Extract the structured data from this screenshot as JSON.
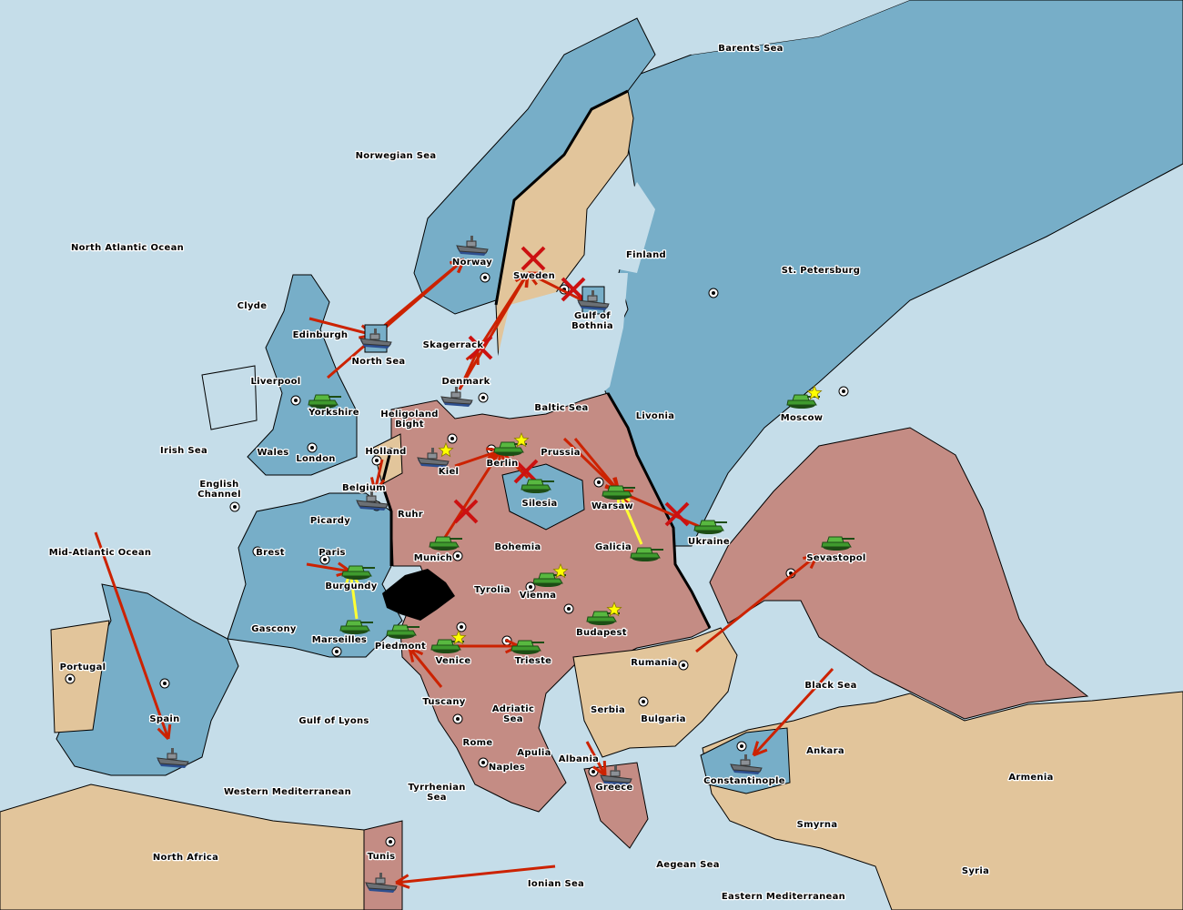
{
  "colors": {
    "sea": "#c5dde9",
    "russia_land": "#77aec8",
    "england_france_land": "#77aec8",
    "central_powers_land": "#c48c84",
    "neutral_land": "#e2c59b",
    "impassable": "#000000",
    "order_red": "#cc2200",
    "order_yellow": "#ffff33",
    "failed_mark": "#cc1111",
    "army_green": "#3f9a2e",
    "fleet_grey": "#6b7075",
    "supply_star": "#ffff00"
  },
  "labels": [
    {
      "lines": [
        "North Atlantic Ocean"
      ]
    },
    {
      "lines": [
        "Norwegian Sea"
      ]
    },
    {
      "lines": [
        "Barents Sea"
      ]
    },
    {
      "lines": [
        "Clyde"
      ]
    },
    {
      "lines": [
        "Edinburgh"
      ]
    },
    {
      "lines": [
        "Liverpool"
      ]
    },
    {
      "lines": [
        "Yorkshire"
      ]
    },
    {
      "lines": [
        "Wales"
      ]
    },
    {
      "lines": [
        "London"
      ]
    },
    {
      "lines": [
        "Irish Sea"
      ]
    },
    {
      "lines": [
        "English",
        "Channel"
      ]
    },
    {
      "lines": [
        "North Sea"
      ]
    },
    {
      "lines": [
        "Norway"
      ]
    },
    {
      "lines": [
        "Sweden"
      ]
    },
    {
      "lines": [
        "Gulf of",
        "Bothnia"
      ]
    },
    {
      "lines": [
        "Finland"
      ]
    },
    {
      "lines": [
        "St. Petersburg"
      ]
    },
    {
      "lines": [
        "Skagerrack"
      ]
    },
    {
      "lines": [
        "Denmark"
      ]
    },
    {
      "lines": [
        "Heligoland",
        "Bight"
      ]
    },
    {
      "lines": [
        "Baltic Sea"
      ]
    },
    {
      "lines": [
        "Livonia"
      ]
    },
    {
      "lines": [
        "Moscow"
      ]
    },
    {
      "lines": [
        "Holland"
      ]
    },
    {
      "lines": [
        "Kiel"
      ]
    },
    {
      "lines": [
        "Berlin"
      ]
    },
    {
      "lines": [
        "Prussia"
      ]
    },
    {
      "lines": [
        "Belgium"
      ]
    },
    {
      "lines": [
        "Ruhr"
      ]
    },
    {
      "lines": [
        "Silesia"
      ]
    },
    {
      "lines": [
        "Warsaw"
      ]
    },
    {
      "lines": [
        "Ukraine"
      ]
    },
    {
      "lines": [
        "Picardy"
      ]
    },
    {
      "lines": [
        "Brest"
      ]
    },
    {
      "lines": [
        "Paris"
      ]
    },
    {
      "lines": [
        "Munich"
      ]
    },
    {
      "lines": [
        "Bohemia"
      ]
    },
    {
      "lines": [
        "Galicia"
      ]
    },
    {
      "lines": [
        "Sevastopol"
      ]
    },
    {
      "lines": [
        "Mid-Atlantic Ocean"
      ]
    },
    {
      "lines": [
        "Burgundy"
      ]
    },
    {
      "lines": [
        "Tyrolia"
      ]
    },
    {
      "lines": [
        "Vienna"
      ]
    },
    {
      "lines": [
        "Budapest"
      ]
    },
    {
      "lines": [
        "Gascony"
      ]
    },
    {
      "lines": [
        "Marseilles"
      ]
    },
    {
      "lines": [
        "Piedmont"
      ]
    },
    {
      "lines": [
        "Venice"
      ]
    },
    {
      "lines": [
        "Trieste"
      ]
    },
    {
      "lines": [
        "Rumania"
      ]
    },
    {
      "lines": [
        "Portugal"
      ]
    },
    {
      "lines": [
        "Black Sea"
      ]
    },
    {
      "lines": [
        "Tuscany"
      ]
    },
    {
      "lines": [
        "Serbia"
      ]
    },
    {
      "lines": [
        "Bulgaria"
      ]
    },
    {
      "lines": [
        "Spain"
      ]
    },
    {
      "lines": [
        "Gulf of Lyons"
      ]
    },
    {
      "lines": [
        "Adriatic",
        "Sea"
      ]
    },
    {
      "lines": [
        "Rome"
      ]
    },
    {
      "lines": [
        "Apulia"
      ]
    },
    {
      "lines": [
        "Albania"
      ]
    },
    {
      "lines": [
        "Ankara"
      ]
    },
    {
      "lines": [
        "Naples"
      ]
    },
    {
      "lines": [
        "Armenia"
      ]
    },
    {
      "lines": [
        "Constantinople"
      ]
    },
    {
      "lines": [
        "Greece"
      ]
    },
    {
      "lines": [
        "Western Mediterranean"
      ]
    },
    {
      "lines": [
        "Tyrrhenian",
        "Sea"
      ]
    },
    {
      "lines": [
        "Smyrna"
      ]
    },
    {
      "lines": [
        "North Africa"
      ]
    },
    {
      "lines": [
        "Tunis"
      ]
    },
    {
      "lines": [
        "Aegean Sea"
      ]
    },
    {
      "lines": [
        "Syria"
      ]
    },
    {
      "lines": [
        "Ionian Sea"
      ]
    },
    {
      "lines": [
        "Eastern Mediterranean"
      ]
    }
  ],
  "units": [
    {
      "type": "fleet",
      "province": "Norway"
    },
    {
      "type": "fleet",
      "province": "North Sea",
      "selected": true
    },
    {
      "type": "fleet",
      "province": "Gulf of Bothnia",
      "selected": true
    },
    {
      "type": "fleet",
      "province": "Denmark"
    },
    {
      "type": "fleet",
      "province": "Kiel",
      "star": true
    },
    {
      "type": "fleet",
      "province": "Belgium"
    },
    {
      "type": "fleet",
      "province": "Spain"
    },
    {
      "type": "fleet",
      "province": "Constantinople"
    },
    {
      "type": "fleet",
      "province": "Greece"
    },
    {
      "type": "fleet",
      "province": "Tunis"
    },
    {
      "type": "army",
      "province": "Yorkshire"
    },
    {
      "type": "army",
      "province": "Moscow",
      "star": true
    },
    {
      "type": "army",
      "province": "Berlin",
      "star": true
    },
    {
      "type": "army",
      "province": "Silesia"
    },
    {
      "type": "army",
      "province": "Warsaw"
    },
    {
      "type": "army",
      "province": "Ukraine"
    },
    {
      "type": "army",
      "province": "Galicia"
    },
    {
      "type": "army",
      "province": "Sevastopol"
    },
    {
      "type": "army",
      "province": "Munich"
    },
    {
      "type": "army",
      "province": "Burgundy"
    },
    {
      "type": "army",
      "province": "Marseilles"
    },
    {
      "type": "army",
      "province": "Vienna",
      "star": true
    },
    {
      "type": "army",
      "province": "Budapest",
      "star": true
    },
    {
      "type": "army",
      "province": "Piedmont"
    },
    {
      "type": "army",
      "province": "Venice",
      "star": true
    },
    {
      "type": "army",
      "province": "Trieste"
    }
  ],
  "orders": [
    {
      "from": "Edinburgh",
      "to": "North Sea",
      "color": "red"
    },
    {
      "from": "North Sea",
      "to": "Norway",
      "color": "red"
    },
    {
      "from": "Yorkshire",
      "to": "Norway",
      "color": "red"
    },
    {
      "from": "Denmark",
      "to": "Sweden",
      "color": "red"
    },
    {
      "from": "Skagerrack",
      "to": "Sweden",
      "color": "red"
    },
    {
      "from": "Gulf of Bothnia",
      "to": "Sweden",
      "color": "red"
    },
    {
      "from": "Denmark",
      "to": "Skagerrack",
      "color": "red"
    },
    {
      "from": "Munich",
      "to": "Berlin",
      "color": "red"
    },
    {
      "from": "Kiel",
      "to": "Berlin",
      "color": "red"
    },
    {
      "from": "Silesia",
      "to": "Berlin",
      "color": "red"
    },
    {
      "from": "Prussia",
      "to": "Warsaw",
      "color": "red"
    },
    {
      "from": "Prussia",
      "to": "Warsaw",
      "color": "red"
    },
    {
      "from": "Ukraine",
      "to": "Warsaw",
      "color": "red"
    },
    {
      "from": "Galicia",
      "to": "Warsaw",
      "color": "yellow"
    },
    {
      "from": "Holland",
      "to": "Belgium",
      "color": "red"
    },
    {
      "from": "Gascony",
      "to": "Burgundy",
      "color": "red"
    },
    {
      "from": "Marseilles",
      "to": "Burgundy",
      "color": "yellow"
    },
    {
      "from": "Venice",
      "to": "Trieste",
      "color": "red"
    },
    {
      "from": "Tuscany",
      "to": "Piedmont",
      "color": "red"
    },
    {
      "from": "Rumania",
      "to": "Sevastopol",
      "color": "red"
    },
    {
      "from": "Black Sea",
      "to": "Constantinople",
      "color": "red"
    },
    {
      "from": "Mid-Atlantic Ocean",
      "to": "Spain",
      "color": "red"
    },
    {
      "from": "Ionian Sea",
      "to": "Tunis",
      "color": "red"
    },
    {
      "from": "Albania",
      "to": "Greece",
      "color": "red"
    }
  ],
  "failed_orders": [
    "Sweden",
    "Gulf of Bothnia",
    "Skagerrack",
    "Munich",
    "Silesia",
    "Ukraine"
  ]
}
